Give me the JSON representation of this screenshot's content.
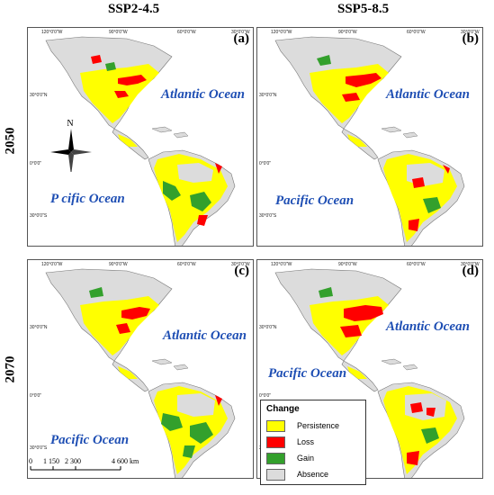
{
  "columns": [
    "SSP2-4.5",
    "SSP5-8.5"
  ],
  "rows": [
    "2050",
    "2070"
  ],
  "panels": [
    {
      "label": "(a)",
      "oceans": [
        "Atlantic Ocean",
        "P cific Ocean"
      ],
      "has_compass": true
    },
    {
      "label": "(b)",
      "oceans": [
        "Atlantic Ocean",
        "Pacific Ocean"
      ]
    },
    {
      "label": "(c)",
      "oceans": [
        "Atlantic Ocean",
        "Pacific Ocean"
      ]
    },
    {
      "label": "(d)",
      "oceans": [
        "Atlantic Ocean",
        "Pacific Ocean"
      ]
    }
  ],
  "lon_ticks": [
    "120°0'0\"W",
    "90°0'0\"W",
    "60°0'0\"W",
    "30°0'0\"W"
  ],
  "lat_ticks": [
    "30°0'0\"N",
    "0°0'0\"",
    "30°0'0\"S"
  ],
  "compass_label": "N",
  "scale_bar": {
    "labels": [
      "0",
      "1 150",
      "2 300",
      "4 600 km"
    ]
  },
  "legend": {
    "title": "Change",
    "items": [
      {
        "label": "Persistence",
        "color": "#ffff00"
      },
      {
        "label": "Loss",
        "color": "#ff0000"
      },
      {
        "label": "Gain",
        "color": "#33a02c"
      },
      {
        "label": "Absence",
        "color": "#dcdcdc"
      }
    ]
  },
  "colors": {
    "ocean_text": "#1f4fb4",
    "land_absence": "#dcdcdc",
    "persistence": "#ffff00",
    "loss": "#ff0000",
    "gain": "#33a02c"
  }
}
